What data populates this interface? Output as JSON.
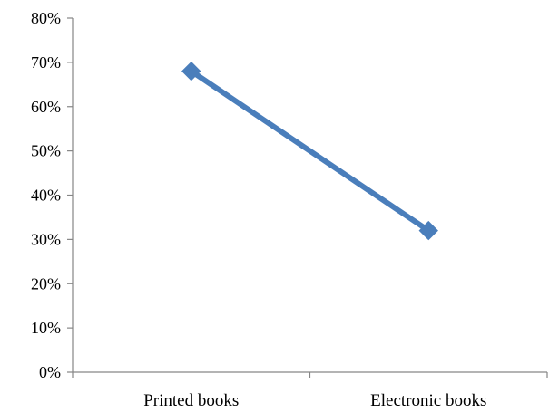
{
  "chart_data": {
    "type": "line",
    "title": "",
    "xlabel": "",
    "ylabel": "",
    "categories": [
      "Printed books",
      "Electronic books"
    ],
    "series": [
      {
        "values": [
          0.68,
          0.32
        ],
        "color": "#4a7ebb",
        "marker": "diamond"
      }
    ],
    "ylim": [
      0,
      0.8
    ],
    "yticks": [
      "0%",
      "10%",
      "20%",
      "30%",
      "40%",
      "50%",
      "60%",
      "70%",
      "80%"
    ],
    "grid": false,
    "legend": "none"
  }
}
